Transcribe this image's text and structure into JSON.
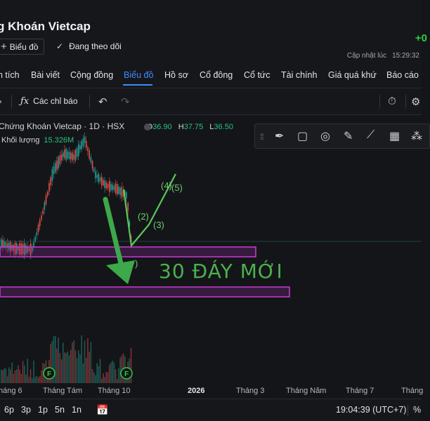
{
  "header": {
    "title": "g Khoán Vietcap",
    "price_change": "+0",
    "chart_button": "Biểu đồ",
    "follow_label": "Đang theo dõi",
    "updated_label": "Cập nhật lúc",
    "updated_time": "15:29:32"
  },
  "nav": {
    "tabs": [
      "n tích",
      "Bài viết",
      "Cộng đồng",
      "Biểu đồ",
      "Hồ sơ",
      "Cổ đông",
      "Cổ tức",
      "Tài chính",
      "Giá quá khứ",
      "Báo cáo"
    ],
    "active": "Biểu đồ"
  },
  "toolbar": {
    "indicators_label": "Các chỉ báo",
    "fx_icon": "fx-icon",
    "undo_icon": "undo-icon",
    "redo_icon": "redo-icon",
    "alert_icon": "alert-clock-icon",
    "settings_icon": "gear-icon"
  },
  "chart": {
    "symbol_line": "Chứng Khoán Vietcap · 1D · HSX",
    "ohlc": {
      "o_key": "O",
      "o": "36.90",
      "h_key": "H",
      "h": "37.75",
      "l_key": "L",
      "l": "36.50"
    },
    "volume_label": "Khối lượng",
    "volume_value": "15.326M",
    "annotation": "30 ĐÁY MỚI",
    "wave_labels": [
      "(2)",
      "(3)",
      "(4)",
      "(5)",
      ")"
    ],
    "event_marker": "F",
    "xaxis_labels": [
      "háng 6",
      "Tháng Tám",
      "Tháng 10",
      "2026",
      "Tháng 3",
      "Tháng Năm",
      "Tháng 7",
      "Tháng"
    ],
    "colors": {
      "up": "#26a69a",
      "down": "#ef5350",
      "zone": "#c43fd0",
      "annotation": "#4caf50"
    }
  },
  "drawbar": {
    "icons": [
      "drag-grip-icon",
      "pen-icon",
      "rectangle-icon",
      "circle-icon",
      "brush-icon",
      "line-icon",
      "grid-icon",
      "pattern-icon"
    ]
  },
  "bottom": {
    "ranges": [
      "6p",
      "3p",
      "1p",
      "5n",
      "1n"
    ],
    "calendar_icon": "calendar-icon",
    "clock": "19:04:39 (UTC+7)",
    "percent": "%"
  }
}
